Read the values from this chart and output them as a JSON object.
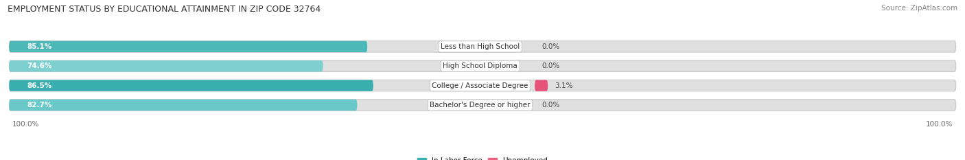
{
  "title": "EMPLOYMENT STATUS BY EDUCATIONAL ATTAINMENT IN ZIP CODE 32764",
  "source": "Source: ZipAtlas.com",
  "categories": [
    "Less than High School",
    "High School Diploma",
    "College / Associate Degree",
    "Bachelor's Degree or higher"
  ],
  "labor_force_pct": [
    85.1,
    74.6,
    86.5,
    82.7
  ],
  "unemployed_pct": [
    0.0,
    0.0,
    3.1,
    0.0
  ],
  "lf_colors": [
    "#4DB8B8",
    "#7ECFCF",
    "#3AAFAF",
    "#6AC8C8"
  ],
  "unemp_colors": [
    "#F2AABE",
    "#F2AABE",
    "#E8537A",
    "#F2AABE"
  ],
  "bar_bg_color": "#E0E0E0",
  "bar_bg_border": "#D0D0D0",
  "background_color": "#FFFFFF",
  "title_fontsize": 9,
  "source_fontsize": 7.5,
  "bar_label_fontsize": 7.5,
  "cat_label_fontsize": 7.5,
  "legend_fontsize": 7.5,
  "axis_tick_fontsize": 7.5,
  "axis_label_left": "100.0%",
  "axis_label_right": "100.0%",
  "legend_lf_color": "#3AAFAF",
  "legend_unemp_color": "#F06080"
}
